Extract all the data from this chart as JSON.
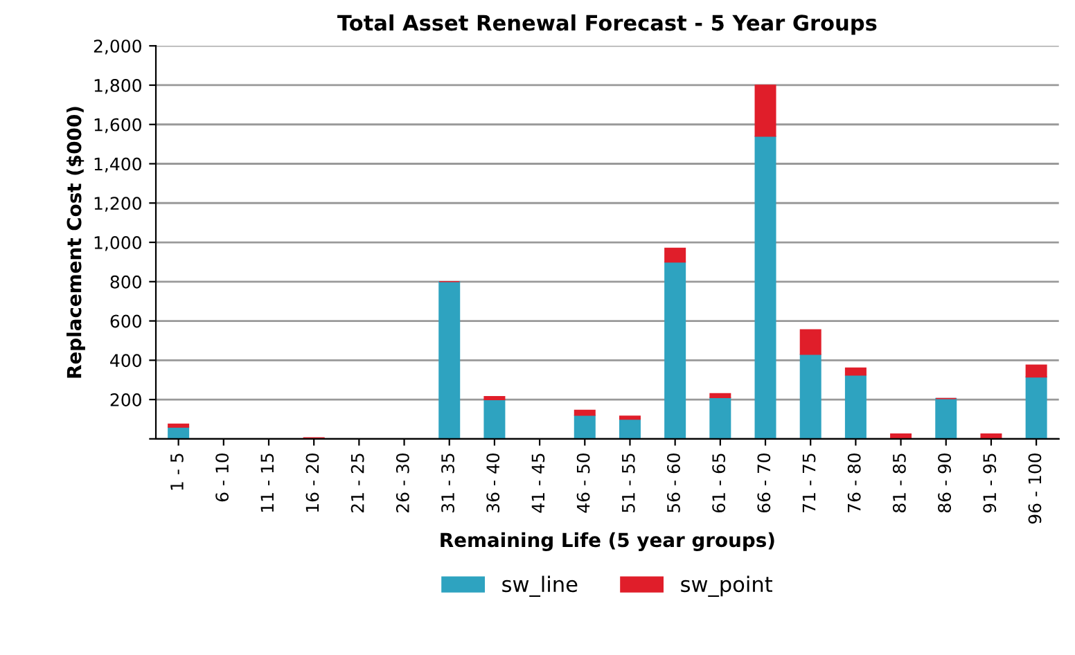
{
  "chart_data": {
    "type": "bar",
    "title": "Total Asset Renewal Forecast - 5 Year Groups",
    "xlabel": "Remaining Life (5 year groups)",
    "ylabel": "Replacement Cost ($000)",
    "categories": [
      "1 - 5",
      "6 - 10",
      "11 - 15",
      "16 - 20",
      "21 - 25",
      "26 - 30",
      "31 - 35",
      "36 - 40",
      "41 - 45",
      "46 - 50",
      "51 - 55",
      "56 - 60",
      "61 - 65",
      "66 - 70",
      "71 - 75",
      "76 - 80",
      "81 - 85",
      "86 - 90",
      "91 - 95",
      "96 - 100"
    ],
    "series": [
      {
        "name": "sw_line",
        "color": "#2ea3c0",
        "values": [
          60,
          0,
          0,
          0,
          0,
          0,
          800,
          200,
          0,
          120,
          100,
          900,
          210,
          1540,
          430,
          325,
          null,
          205,
          null,
          315
        ]
      },
      {
        "name": "sw_point",
        "color": "#e01e2a",
        "values": [
          15,
          0,
          0,
          5,
          0,
          0,
          0,
          15,
          0,
          25,
          15,
          70,
          20,
          260,
          125,
          35,
          25,
          0,
          25,
          60
        ]
      }
    ],
    "stacked": true,
    "ylim": [
      0,
      2000
    ],
    "yticks": [
      {
        "value": 0,
        "label": null
      },
      200,
      400,
      600,
      800,
      {
        "value": 1000,
        "label": "1,000"
      },
      {
        "value": 1200,
        "label": "1,200"
      },
      {
        "value": 1400,
        "label": "1,400"
      },
      {
        "value": 1600,
        "label": "1,600"
      },
      {
        "value": 1800,
        "label": "1,800"
      },
      {
        "value": 2000,
        "label": "2,000"
      }
    ],
    "grid": "y",
    "legend": "bottom"
  }
}
